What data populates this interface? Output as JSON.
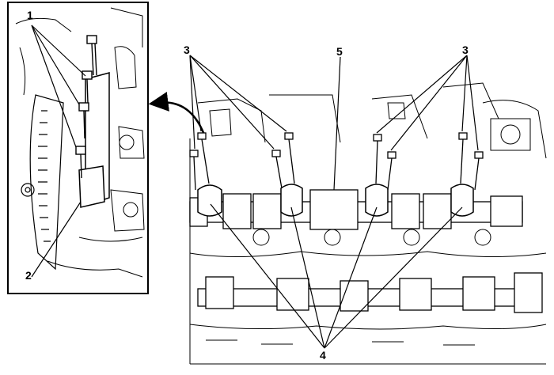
{
  "callouts": {
    "c1": "1",
    "c2": "2",
    "c3_left": "3",
    "c3_right": "3",
    "c4": "4",
    "c5": "5"
  },
  "colors": {
    "line": "#000000",
    "background": "#ffffff"
  }
}
